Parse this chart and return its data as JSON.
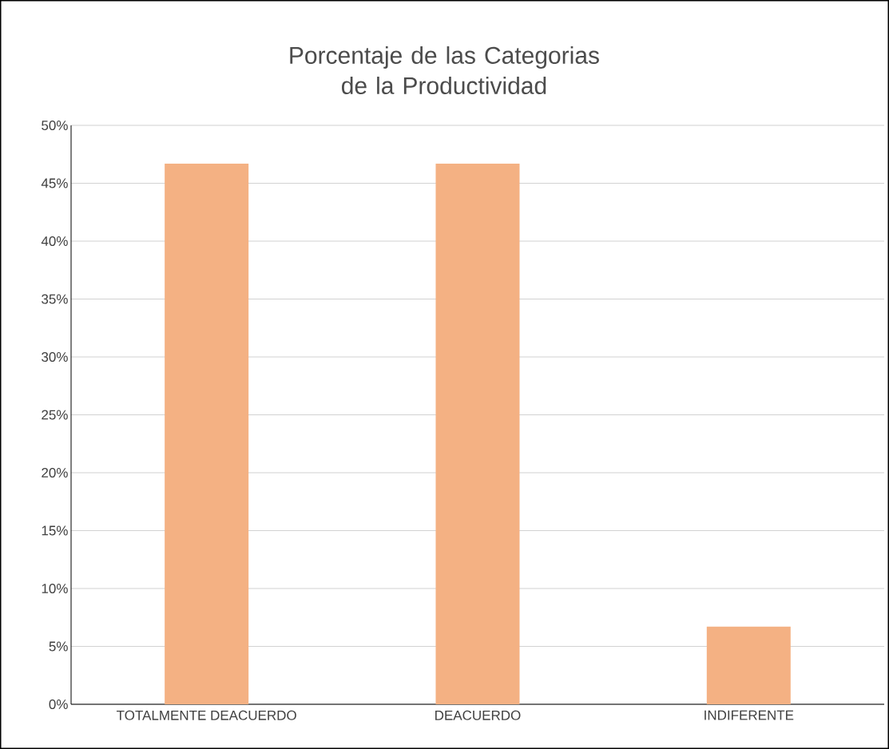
{
  "chart_data": {
    "type": "bar",
    "title": "Porcentaje de las Categorias de la Productividad",
    "categories": [
      "TOTALMENTE DEACUERDO",
      "DEACUERDO",
      "INDIFERENTE"
    ],
    "values": [
      46.7,
      46.7,
      6.7
    ],
    "color": "#f4b183",
    "ylim": [
      0,
      50
    ],
    "yticks": [
      {
        "value": 0,
        "label": "0%"
      },
      {
        "value": 5,
        "label": "5%"
      },
      {
        "value": 10,
        "label": "10%"
      },
      {
        "value": 15,
        "label": "15%"
      },
      {
        "value": 20,
        "label": "20%"
      },
      {
        "value": 25,
        "label": "25%"
      },
      {
        "value": 30,
        "label": "30%"
      },
      {
        "value": 35,
        "label": "35%"
      },
      {
        "value": 40,
        "label": "40%"
      },
      {
        "value": 45,
        "label": "45%"
      },
      {
        "value": 50,
        "label": "50%"
      }
    ],
    "grid": "y"
  }
}
